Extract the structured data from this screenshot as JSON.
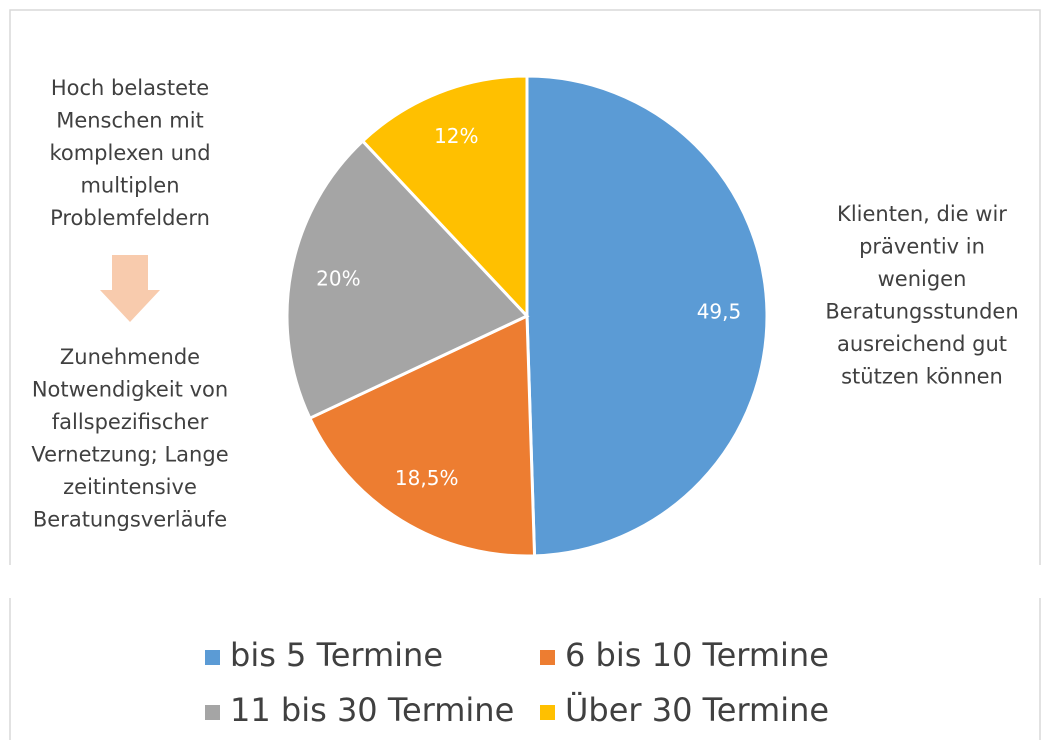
{
  "chart_data": {
    "type": "pie",
    "categories": [
      "bis 5 Termine",
      "6 bis 10 Termine",
      "11 bis 30 Termine",
      "Über 30 Termine"
    ],
    "values": [
      49.5,
      18.5,
      20,
      12
    ],
    "value_labels": [
      "49,5",
      "18,5%",
      "20%",
      "12%"
    ],
    "colors": [
      "#5b9bd5",
      "#ed7d31",
      "#a5a5a5",
      "#ffc000"
    ],
    "annotations": [
      [
        "Hoch belastete",
        "Menschen mit",
        "komplexen und",
        "multiplen",
        "Problemfeldern"
      ],
      [
        "Zunehmende",
        "Notwendigkeit von",
        "fallspezifischer",
        "Vernetzung; Lange",
        "zeitintensive",
        "Beratungsverläufe"
      ],
      [
        "Klienten, die wir",
        "präventiv in",
        "wenigen",
        "Beratungsstunden",
        "ausreichend gut",
        "stützen können"
      ]
    ]
  }
}
